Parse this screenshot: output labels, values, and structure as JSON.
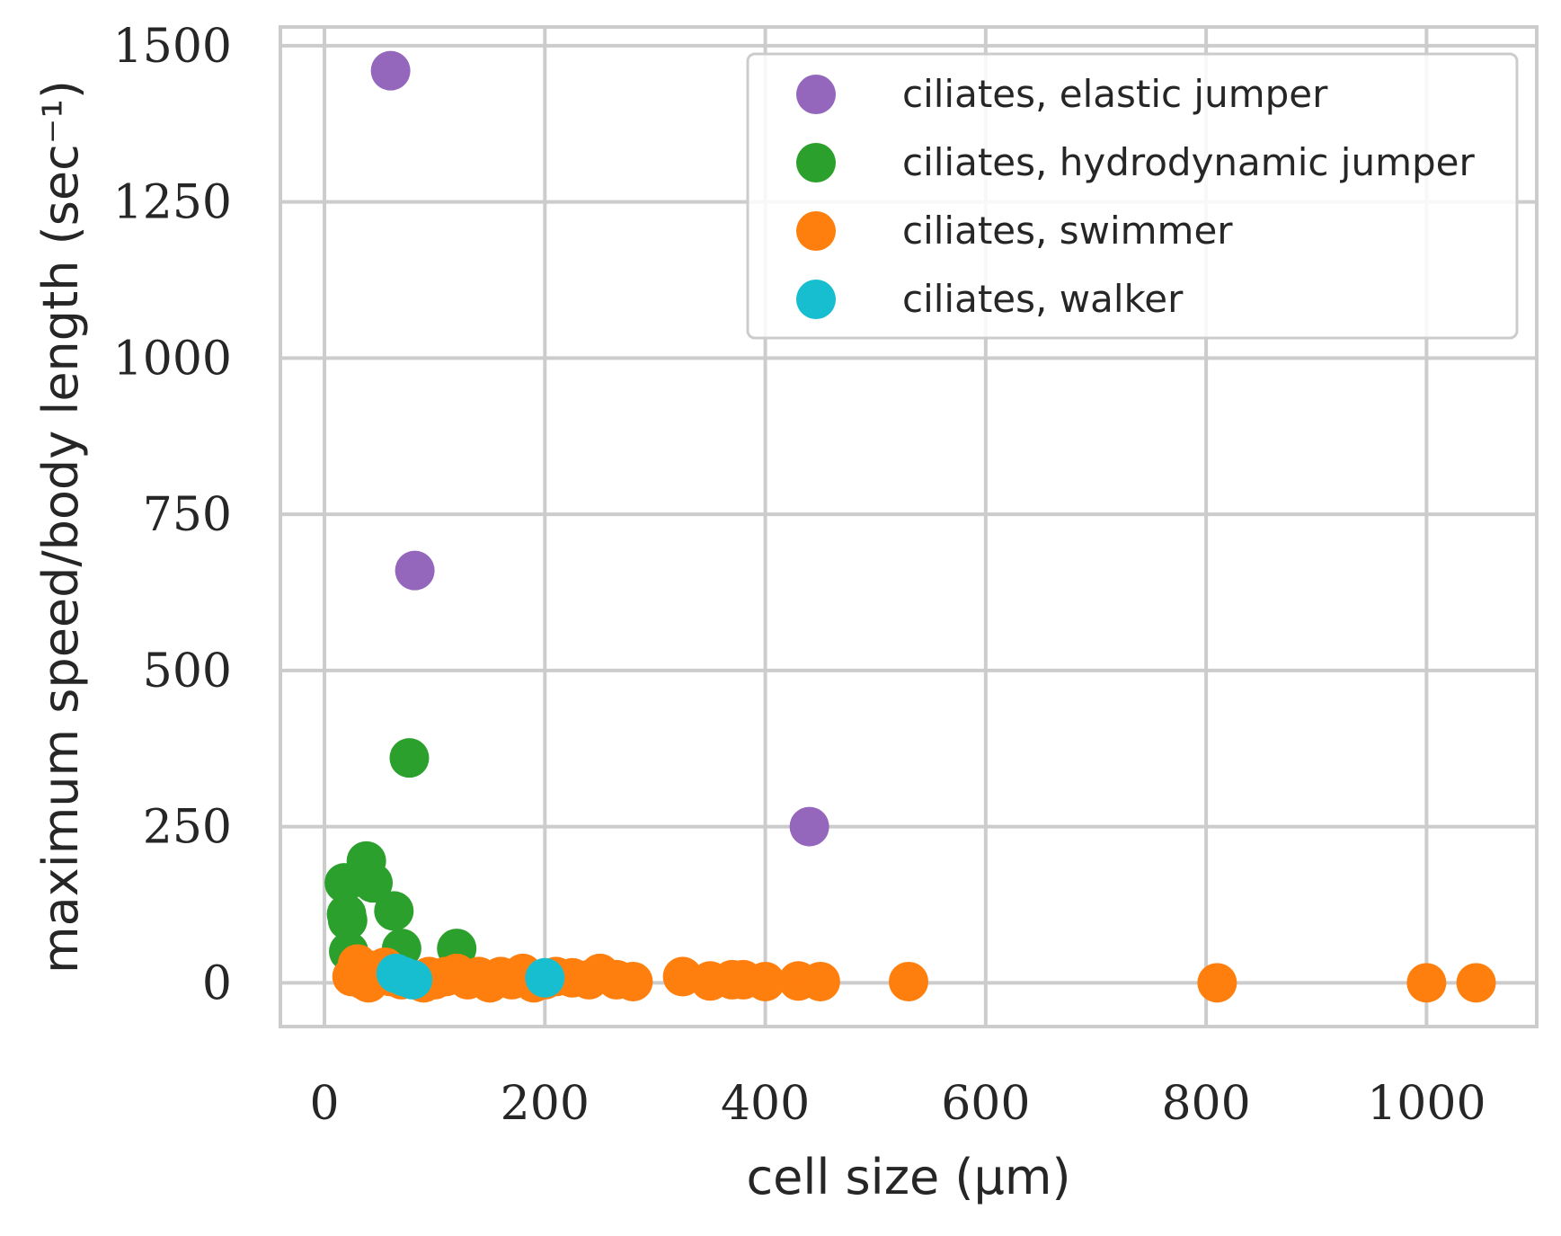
{
  "chart_data": {
    "type": "scatter",
    "xlabel": "cell size (μm)",
    "ylabel": "maximum speed/body length (sec⁻¹)",
    "xlim": [
      -40,
      1100
    ],
    "ylim": [
      -70,
      1530
    ],
    "xticks": [
      0,
      200,
      400,
      600,
      800,
      1000
    ],
    "yticks": [
      0,
      250,
      500,
      750,
      1000,
      1250,
      1500
    ],
    "grid": true,
    "legend_position": "top-right",
    "series": [
      {
        "name": "ciliates, elastic jumper",
        "color": "#9467bd",
        "points": [
          [
            60,
            1460
          ],
          [
            82,
            660
          ],
          [
            440,
            250
          ]
        ]
      },
      {
        "name": "ciliates, hydrodynamic jumper",
        "color": "#2ca02c",
        "points": [
          [
            18,
            160
          ],
          [
            20,
            110
          ],
          [
            21,
            100
          ],
          [
            38,
            195
          ],
          [
            44,
            160
          ],
          [
            63,
            115
          ],
          [
            70,
            55
          ],
          [
            77,
            360
          ],
          [
            120,
            55
          ],
          [
            22,
            50
          ],
          [
            30,
            30
          ]
        ]
      },
      {
        "name": "ciliates, swimmer",
        "color": "#ff7f0e",
        "points": [
          [
            25,
            10
          ],
          [
            30,
            30
          ],
          [
            35,
            5
          ],
          [
            40,
            0
          ],
          [
            45,
            20
          ],
          [
            55,
            25
          ],
          [
            60,
            10
          ],
          [
            70,
            5
          ],
          [
            90,
            0
          ],
          [
            95,
            10
          ],
          [
            100,
            5
          ],
          [
            110,
            10
          ],
          [
            120,
            15
          ],
          [
            130,
            5
          ],
          [
            140,
            10
          ],
          [
            150,
            0
          ],
          [
            160,
            10
          ],
          [
            170,
            5
          ],
          [
            180,
            15
          ],
          [
            190,
            0
          ],
          [
            200,
            5
          ],
          [
            210,
            10
          ],
          [
            225,
            8
          ],
          [
            240,
            5
          ],
          [
            250,
            15
          ],
          [
            265,
            5
          ],
          [
            280,
            2
          ],
          [
            325,
            10
          ],
          [
            350,
            3
          ],
          [
            370,
            5
          ],
          [
            380,
            5
          ],
          [
            400,
            2
          ],
          [
            430,
            3
          ],
          [
            450,
            2
          ],
          [
            530,
            2
          ],
          [
            810,
            0
          ],
          [
            1000,
            0
          ],
          [
            1045,
            0
          ]
        ]
      },
      {
        "name": "ciliates, walker",
        "color": "#17becf",
        "points": [
          [
            65,
            15
          ],
          [
            72,
            10
          ],
          [
            80,
            5
          ],
          [
            200,
            8
          ]
        ]
      }
    ]
  }
}
